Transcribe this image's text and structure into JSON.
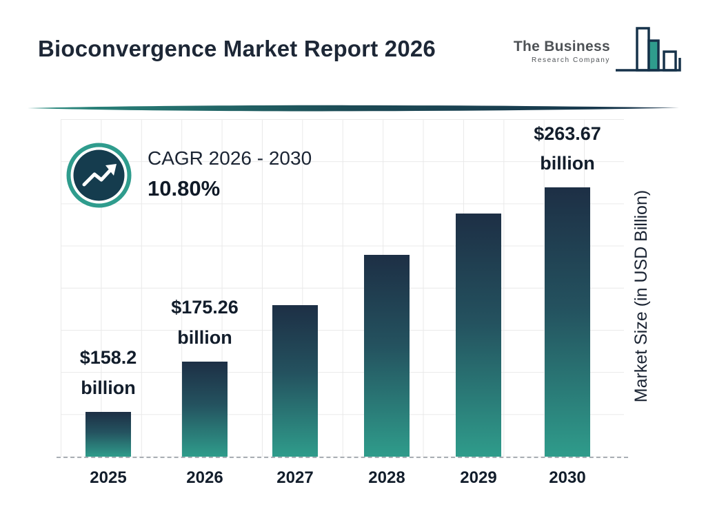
{
  "header": {
    "title": "Bioconvergence Market Report 2026",
    "logo": {
      "line1": "The Business",
      "line2": "Research Company"
    }
  },
  "cagr": {
    "label": "CAGR 2026 - 2030",
    "value": "10.80%"
  },
  "chart_data": {
    "type": "bar",
    "title": "Bioconvergence Market Report 2026",
    "categories": [
      "2025",
      "2026",
      "2027",
      "2028",
      "2029",
      "2030"
    ],
    "values": [
      158.2,
      175.26,
      194.2,
      215.2,
      238.4,
      263.67
    ],
    "bar_labels": [
      {
        "amount": "$158.2",
        "unit": "billion"
      },
      {
        "amount": "$175.26",
        "unit": "billion"
      },
      null,
      null,
      null,
      {
        "amount": "$263.67",
        "unit": "billion"
      }
    ],
    "xlabel": "",
    "ylabel": "Market Size (in USD Billion)",
    "grid": true,
    "legend": false,
    "bar_heights_pct": [
      13.3,
      28.2,
      44.9,
      59.8,
      72.0,
      79.8
    ],
    "colors": {
      "bar_top": "#1d2f45",
      "bar_mid": "#24525f",
      "bar_bottom": "#2f9c8b",
      "accent_teal": "#2f9c8d",
      "dark_navy": "#16324a",
      "text": "#121d2b"
    }
  }
}
